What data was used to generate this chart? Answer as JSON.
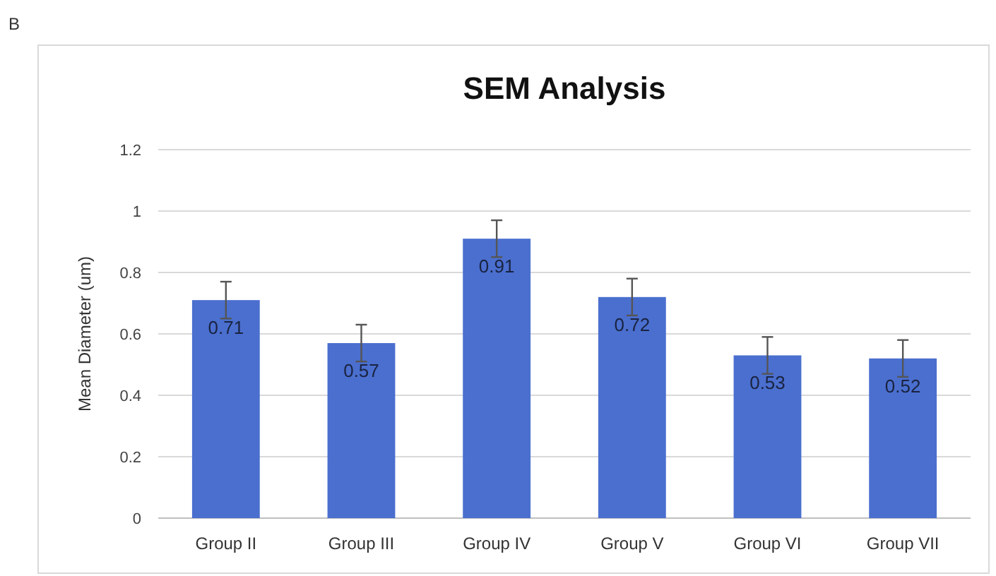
{
  "chart_data": {
    "type": "bar",
    "title": "SEM Analysis",
    "ylabel": "Mean Diameter  (um)",
    "annotations": [
      "B"
    ],
    "categories": [
      "Group II",
      "Group III",
      "Group IV",
      "Group V",
      "Group VI",
      "Group VII"
    ],
    "values": [
      0.71,
      0.57,
      0.91,
      0.72,
      0.53,
      0.52
    ],
    "errors": [
      0.06,
      0.06,
      0.06,
      0.06,
      0.06,
      0.06
    ],
    "color": "#4a6fcf",
    "ylim": [
      0,
      1.2
    ],
    "yticks": [
      0,
      0.2,
      0.4,
      0.6,
      0.8,
      1,
      1.2
    ],
    "grid": true,
    "data_labels": true
  }
}
